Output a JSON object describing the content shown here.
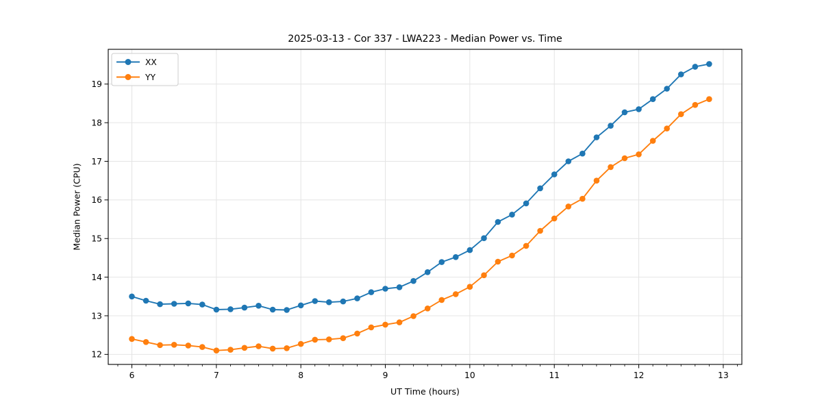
{
  "chart_data": {
    "type": "line",
    "title": "2025-03-13 - Cor 337 - LWA223 - Median Power vs. Time",
    "xlabel": "UT Time (hours)",
    "ylabel": "Median Power (CPU)",
    "xlim": [
      5.72,
      13.22
    ],
    "ylim": [
      11.74,
      19.9
    ],
    "xticks": [
      6,
      7,
      8,
      9,
      10,
      11,
      12,
      13
    ],
    "yticks": [
      12,
      13,
      14,
      15,
      16,
      17,
      18,
      19
    ],
    "x_minor_step": 0.166667,
    "grid": true,
    "grid_color": "#e4e4e4",
    "spine_color": "#000000",
    "legend_position": "upper-left",
    "x": [
      6.0,
      6.167,
      6.333,
      6.5,
      6.667,
      6.833,
      7.0,
      7.167,
      7.333,
      7.5,
      7.667,
      7.833,
      8.0,
      8.167,
      8.333,
      8.5,
      8.667,
      8.833,
      9.0,
      9.167,
      9.333,
      9.5,
      9.667,
      9.833,
      10.0,
      10.167,
      10.333,
      10.5,
      10.667,
      10.833,
      11.0,
      11.167,
      11.333,
      11.5,
      11.667,
      11.833,
      12.0,
      12.167,
      12.333,
      12.5,
      12.667,
      12.833
    ],
    "series": [
      {
        "name": "XX",
        "color": "#1f77b4",
        "values": [
          13.5,
          13.39,
          13.3,
          13.31,
          13.32,
          13.29,
          13.16,
          13.17,
          13.21,
          13.26,
          13.16,
          13.15,
          13.27,
          13.38,
          13.35,
          13.37,
          13.45,
          13.61,
          13.7,
          13.74,
          13.9,
          14.13,
          14.39,
          14.52,
          14.7,
          15.01,
          15.43,
          15.62,
          15.91,
          16.3,
          16.66,
          17.0,
          17.2,
          17.62,
          17.92,
          18.27,
          18.35,
          18.61,
          18.88,
          19.25,
          19.45,
          19.52
        ]
      },
      {
        "name": "YY",
        "color": "#ff7f0e",
        "values": [
          12.4,
          12.32,
          12.24,
          12.25,
          12.23,
          12.19,
          12.1,
          12.12,
          12.17,
          12.21,
          12.15,
          12.16,
          12.27,
          12.38,
          12.39,
          12.42,
          12.54,
          12.7,
          12.77,
          12.83,
          12.99,
          13.19,
          13.41,
          13.56,
          13.75,
          14.05,
          14.4,
          14.56,
          14.81,
          15.2,
          15.52,
          15.83,
          16.03,
          16.5,
          16.85,
          17.08,
          17.18,
          17.53,
          17.85,
          18.22,
          18.46,
          18.61
        ]
      }
    ]
  }
}
